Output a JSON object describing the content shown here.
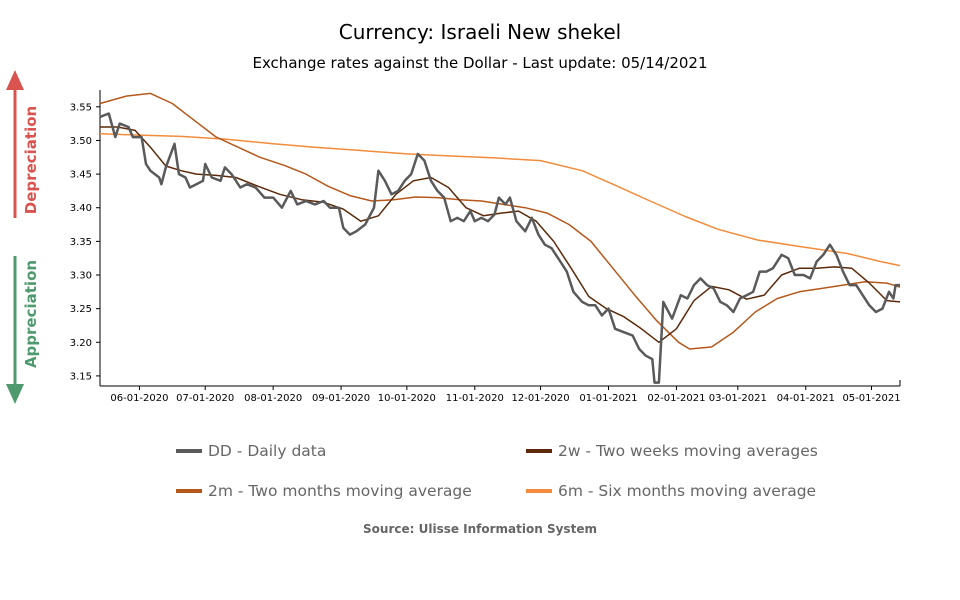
{
  "title": "Currency: Israeli New shekel",
  "subtitle": "Exchange rates against the Dollar - Last update: 05/14/2021",
  "side_labels": {
    "top": "Depreciation",
    "bottom": "Appreciation"
  },
  "colors": {
    "depreciation": "#d9534f",
    "appreciation": "#4e9a6e",
    "daily": "#5a5a5a",
    "ma2w": "#5c2a0a",
    "ma2m": "#b5581b",
    "ma6m": "#f28c3c"
  },
  "source": "Source: Ulisse Information System",
  "chart_data": {
    "type": "line",
    "x_tick_labels": [
      "06-01-2020",
      "07-01-2020",
      "08-01-2020",
      "09-01-2020",
      "10-01-2020",
      "11-01-2020",
      "12-01-2020",
      "01-01-2021",
      "02-01-2021",
      "03-01-2021",
      "04-01-2021",
      "05-01-2021"
    ],
    "x_range": [
      "05-14-2020",
      "05-14-2021"
    ],
    "y_ticks": [
      3.15,
      3.2,
      3.25,
      3.3,
      3.35,
      3.4,
      3.45,
      3.5,
      3.55
    ],
    "ylim": [
      3.135,
      3.575
    ],
    "legend": [
      {
        "key": "daily",
        "label": "DD - Daily data"
      },
      {
        "key": "ma2w",
        "label": "2w - Two weeks moving averages"
      },
      {
        "key": "ma2m",
        "label": "2m - Two months moving average"
      },
      {
        "key": "ma6m",
        "label": "6m - Six months moving average"
      }
    ],
    "series": [
      {
        "name": "DD - Daily data",
        "key": "daily",
        "width": 2.5,
        "points": [
          [
            "05-14-2020",
            3.535
          ],
          [
            "05-18-2020",
            3.54
          ],
          [
            "05-21-2020",
            3.505
          ],
          [
            "05-23-2020",
            3.525
          ],
          [
            "05-27-2020",
            3.52
          ],
          [
            "05-29-2020",
            3.505
          ],
          [
            "06-02-2020",
            3.505
          ],
          [
            "06-04-2020",
            3.465
          ],
          [
            "06-06-2020",
            3.455
          ],
          [
            "06-10-2020",
            3.445
          ],
          [
            "06-11-2020",
            3.435
          ],
          [
            "06-13-2020",
            3.46
          ],
          [
            "06-17-2020",
            3.495
          ],
          [
            "06-19-2020",
            3.45
          ],
          [
            "06-22-2020",
            3.445
          ],
          [
            "06-24-2020",
            3.43
          ],
          [
            "06-27-2020",
            3.435
          ],
          [
            "06-30-2020",
            3.44
          ],
          [
            "07-01-2020",
            3.465
          ],
          [
            "07-04-2020",
            3.445
          ],
          [
            "07-08-2020",
            3.44
          ],
          [
            "07-10-2020",
            3.46
          ],
          [
            "07-13-2020",
            3.45
          ],
          [
            "07-17-2020",
            3.43
          ],
          [
            "07-20-2020",
            3.435
          ],
          [
            "07-24-2020",
            3.43
          ],
          [
            "07-28-2020",
            3.415
          ],
          [
            "08-01-2020",
            3.415
          ],
          [
            "08-05-2020",
            3.4
          ],
          [
            "08-09-2020",
            3.425
          ],
          [
            "08-12-2020",
            3.405
          ],
          [
            "08-16-2020",
            3.41
          ],
          [
            "08-20-2020",
            3.405
          ],
          [
            "08-24-2020",
            3.41
          ],
          [
            "08-27-2020",
            3.4
          ],
          [
            "08-31-2020",
            3.4
          ],
          [
            "09-02-2020",
            3.37
          ],
          [
            "09-05-2020",
            3.36
          ],
          [
            "09-08-2020",
            3.365
          ],
          [
            "09-12-2020",
            3.375
          ],
          [
            "09-16-2020",
            3.4
          ],
          [
            "09-18-2020",
            3.455
          ],
          [
            "09-21-2020",
            3.44
          ],
          [
            "09-24-2020",
            3.42
          ],
          [
            "09-27-2020",
            3.425
          ],
          [
            "09-30-2020",
            3.44
          ],
          [
            "10-03-2020",
            3.45
          ],
          [
            "10-06-2020",
            3.48
          ],
          [
            "10-09-2020",
            3.47
          ],
          [
            "10-12-2020",
            3.44
          ],
          [
            "10-15-2020",
            3.425
          ],
          [
            "10-18-2020",
            3.415
          ],
          [
            "10-21-2020",
            3.38
          ],
          [
            "10-24-2020",
            3.385
          ],
          [
            "10-27-2020",
            3.38
          ],
          [
            "10-30-2020",
            3.395
          ],
          [
            "11-01-2020",
            3.38
          ],
          [
            "11-04-2020",
            3.385
          ],
          [
            "11-07-2020",
            3.38
          ],
          [
            "11-10-2020",
            3.39
          ],
          [
            "11-12-2020",
            3.415
          ],
          [
            "11-15-2020",
            3.405
          ],
          [
            "11-17-2020",
            3.415
          ],
          [
            "11-20-2020",
            3.38
          ],
          [
            "11-24-2020",
            3.365
          ],
          [
            "11-27-2020",
            3.385
          ],
          [
            "11-30-2020",
            3.36
          ],
          [
            "12-03-2020",
            3.345
          ],
          [
            "12-06-2020",
            3.34
          ],
          [
            "12-10-2020",
            3.32
          ],
          [
            "12-13-2020",
            3.305
          ],
          [
            "12-16-2020",
            3.275
          ],
          [
            "12-20-2020",
            3.26
          ],
          [
            "12-23-2020",
            3.255
          ],
          [
            "12-26-2020",
            3.255
          ],
          [
            "12-29-2020",
            3.24
          ],
          [
            "01-01-2021",
            3.25
          ],
          [
            "01-04-2021",
            3.22
          ],
          [
            "01-08-2021",
            3.215
          ],
          [
            "01-12-2021",
            3.21
          ],
          [
            "01-15-2021",
            3.19
          ],
          [
            "01-18-2021",
            3.18
          ],
          [
            "01-21-2021",
            3.175
          ],
          [
            "01-22-2021",
            3.14
          ],
          [
            "01-24-2021",
            3.14
          ],
          [
            "01-26-2021",
            3.26
          ],
          [
            "01-30-2021",
            3.235
          ],
          [
            "02-03-2021",
            3.27
          ],
          [
            "02-06-2021",
            3.265
          ],
          [
            "02-09-2021",
            3.285
          ],
          [
            "02-12-2021",
            3.295
          ],
          [
            "02-15-2021",
            3.285
          ],
          [
            "02-18-2021",
            3.28
          ],
          [
            "02-21-2021",
            3.26
          ],
          [
            "02-24-2021",
            3.255
          ],
          [
            "02-27-2021",
            3.245
          ],
          [
            "03-02-2021",
            3.265
          ],
          [
            "03-05-2021",
            3.27
          ],
          [
            "03-08-2021",
            3.275
          ],
          [
            "03-11-2021",
            3.305
          ],
          [
            "03-14-2021",
            3.305
          ],
          [
            "03-17-2021",
            3.31
          ],
          [
            "03-21-2021",
            3.33
          ],
          [
            "03-24-2021",
            3.325
          ],
          [
            "03-27-2021",
            3.3
          ],
          [
            "03-31-2021",
            3.3
          ],
          [
            "04-03-2021",
            3.295
          ],
          [
            "04-06-2021",
            3.32
          ],
          [
            "04-09-2021",
            3.33
          ],
          [
            "04-12-2021",
            3.345
          ],
          [
            "04-15-2021",
            3.33
          ],
          [
            "04-18-2021",
            3.305
          ],
          [
            "04-21-2021",
            3.285
          ],
          [
            "04-24-2021",
            3.285
          ],
          [
            "04-27-2021",
            3.27
          ],
          [
            "04-30-2021",
            3.255
          ],
          [
            "05-03-2021",
            3.245
          ],
          [
            "05-06-2021",
            3.25
          ],
          [
            "05-09-2021",
            3.275
          ],
          [
            "05-11-2021",
            3.265
          ],
          [
            "05-12-2021",
            3.285
          ],
          [
            "05-14-2021",
            3.285
          ]
        ]
      },
      {
        "name": "2w - Two weeks moving averages",
        "key": "ma2w",
        "width": 1.5,
        "points": [
          [
            "05-14-2020",
            3.52
          ],
          [
            "05-22-2020",
            3.52
          ],
          [
            "05-30-2020",
            3.515
          ],
          [
            "06-06-2020",
            3.49
          ],
          [
            "06-13-2020",
            3.462
          ],
          [
            "06-20-2020",
            3.455
          ],
          [
            "06-27-2020",
            3.45
          ],
          [
            "07-06-2020",
            3.448
          ],
          [
            "07-15-2020",
            3.445
          ],
          [
            "07-25-2020",
            3.432
          ],
          [
            "08-04-2020",
            3.42
          ],
          [
            "08-14-2020",
            3.412
          ],
          [
            "08-24-2020",
            3.408
          ],
          [
            "09-02-2020",
            3.398
          ],
          [
            "09-10-2020",
            3.38
          ],
          [
            "09-18-2020",
            3.388
          ],
          [
            "09-26-2020",
            3.42
          ],
          [
            "10-04-2020",
            3.44
          ],
          [
            "10-12-2020",
            3.445
          ],
          [
            "10-20-2020",
            3.43
          ],
          [
            "10-28-2020",
            3.4
          ],
          [
            "11-05-2020",
            3.388
          ],
          [
            "11-13-2020",
            3.392
          ],
          [
            "11-21-2020",
            3.395
          ],
          [
            "11-29-2020",
            3.38
          ],
          [
            "12-07-2020",
            3.35
          ],
          [
            "12-15-2020",
            3.31
          ],
          [
            "12-23-2020",
            3.268
          ],
          [
            "12-31-2020",
            3.25
          ],
          [
            "01-08-2021",
            3.238
          ],
          [
            "01-16-2021",
            3.22
          ],
          [
            "01-24-2021",
            3.2
          ],
          [
            "02-01-2021",
            3.22
          ],
          [
            "02-09-2021",
            3.262
          ],
          [
            "02-17-2021",
            3.283
          ],
          [
            "02-25-2021",
            3.278
          ],
          [
            "03-05-2021",
            3.264
          ],
          [
            "03-13-2021",
            3.27
          ],
          [
            "03-21-2021",
            3.3
          ],
          [
            "03-29-2021",
            3.31
          ],
          [
            "04-06-2021",
            3.31
          ],
          [
            "04-14-2021",
            3.312
          ],
          [
            "04-22-2021",
            3.31
          ],
          [
            "04-30-2021",
            3.288
          ],
          [
            "05-08-2021",
            3.262
          ],
          [
            "05-14-2021",
            3.26
          ]
        ]
      },
      {
        "name": "2m - Two months moving average",
        "key": "ma2m",
        "width": 1.5,
        "points": [
          [
            "05-14-2020",
            3.555
          ],
          [
            "05-26-2020",
            3.566
          ],
          [
            "06-06-2020",
            3.57
          ],
          [
            "06-16-2020",
            3.555
          ],
          [
            "06-26-2020",
            3.53
          ],
          [
            "07-06-2020",
            3.505
          ],
          [
            "07-16-2020",
            3.49
          ],
          [
            "07-26-2020",
            3.475
          ],
          [
            "08-06-2020",
            3.463
          ],
          [
            "08-16-2020",
            3.45
          ],
          [
            "08-26-2020",
            3.432
          ],
          [
            "09-05-2020",
            3.418
          ],
          [
            "09-15-2020",
            3.41
          ],
          [
            "09-25-2020",
            3.412
          ],
          [
            "10-05-2020",
            3.416
          ],
          [
            "10-15-2020",
            3.415
          ],
          [
            "10-25-2020",
            3.412
          ],
          [
            "11-04-2020",
            3.41
          ],
          [
            "11-14-2020",
            3.405
          ],
          [
            "11-24-2020",
            3.4
          ],
          [
            "12-04-2020",
            3.392
          ],
          [
            "12-14-2020",
            3.375
          ],
          [
            "12-24-2020",
            3.35
          ],
          [
            "01-03-2021",
            3.31
          ],
          [
            "01-13-2021",
            3.27
          ],
          [
            "01-23-2021",
            3.232
          ],
          [
            "02-02-2021",
            3.2
          ],
          [
            "02-07-2021",
            3.19
          ],
          [
            "02-17-2021",
            3.193
          ],
          [
            "02-27-2021",
            3.215
          ],
          [
            "03-09-2021",
            3.245
          ],
          [
            "03-19-2021",
            3.265
          ],
          [
            "03-29-2021",
            3.275
          ],
          [
            "04-08-2021",
            3.28
          ],
          [
            "04-18-2021",
            3.285
          ],
          [
            "04-28-2021",
            3.29
          ],
          [
            "05-08-2021",
            3.288
          ],
          [
            "05-14-2021",
            3.282
          ]
        ]
      },
      {
        "name": "6m - Six months moving average",
        "key": "ma6m",
        "width": 1.5,
        "points": [
          [
            "05-14-2020",
            3.51
          ],
          [
            "06-01-2020",
            3.508
          ],
          [
            "06-20-2020",
            3.506
          ],
          [
            "07-10-2020",
            3.502
          ],
          [
            "08-01-2020",
            3.495
          ],
          [
            "08-20-2020",
            3.49
          ],
          [
            "09-10-2020",
            3.485
          ],
          [
            "10-01-2020",
            3.48
          ],
          [
            "10-20-2020",
            3.477
          ],
          [
            "11-10-2020",
            3.474
          ],
          [
            "12-01-2020",
            3.47
          ],
          [
            "12-20-2020",
            3.455
          ],
          [
            "01-05-2021",
            3.432
          ],
          [
            "01-20-2021",
            3.41
          ],
          [
            "02-05-2021",
            3.387
          ],
          [
            "02-20-2021",
            3.368
          ],
          [
            "03-10-2021",
            3.352
          ],
          [
            "03-30-2021",
            3.342
          ],
          [
            "04-20-2021",
            3.332
          ],
          [
            "05-05-2021",
            3.32
          ],
          [
            "05-14-2021",
            3.314
          ]
        ]
      }
    ]
  }
}
